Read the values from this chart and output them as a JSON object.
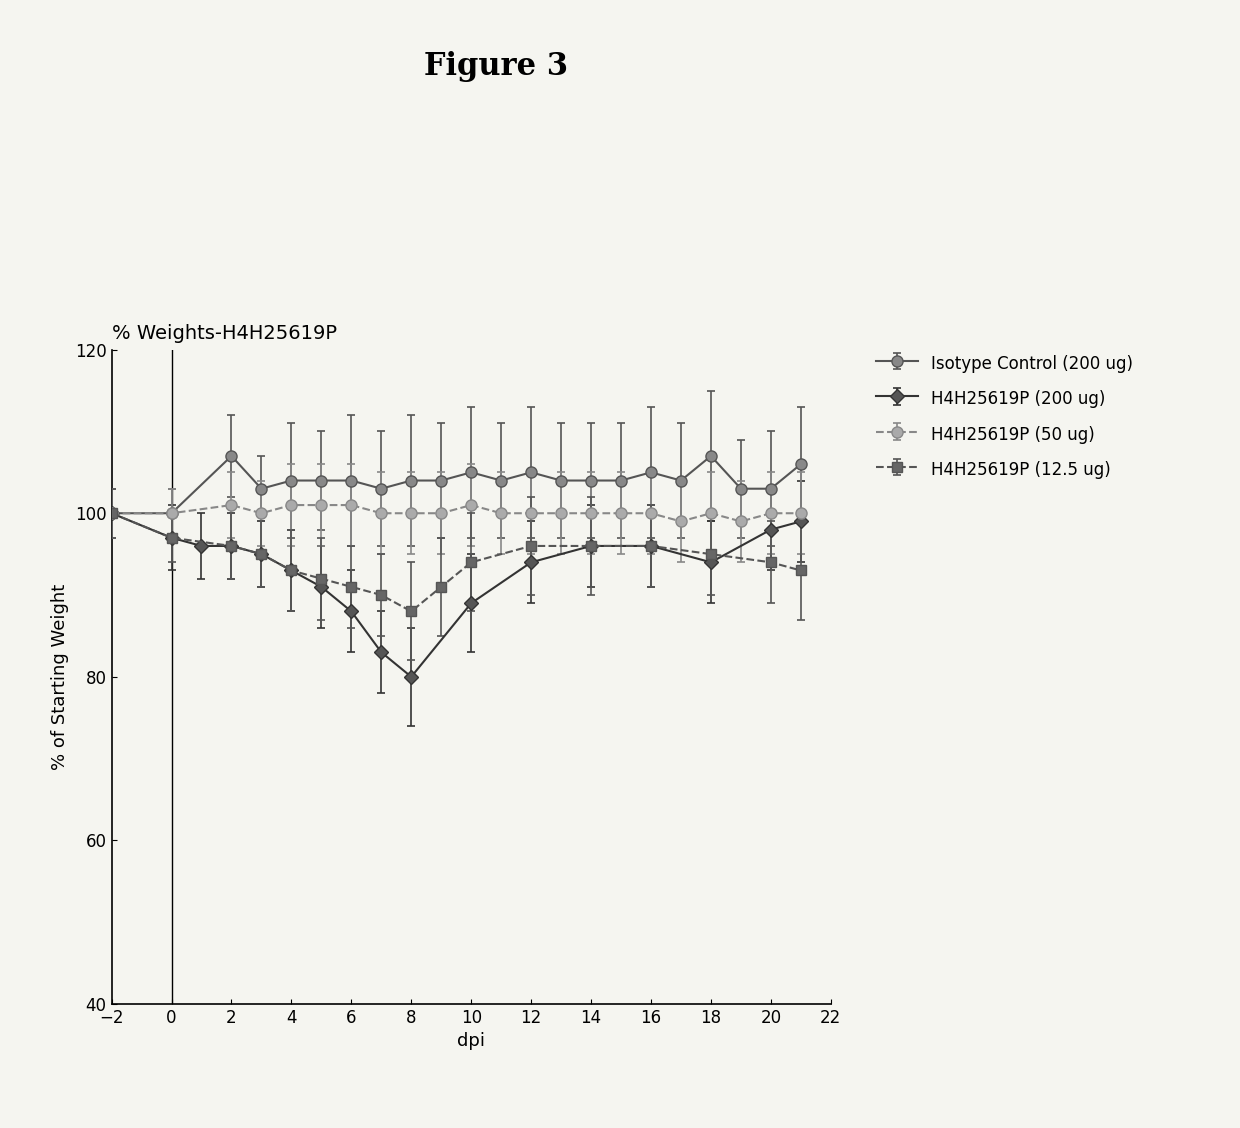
{
  "title": "Figure 3",
  "subtitle": "% Weights-H4H25619P",
  "xlabel": "dpi",
  "ylabel": "% of Starting Weight",
  "xlim": [
    -2,
    22
  ],
  "ylim": [
    40,
    120
  ],
  "xticks": [
    -2,
    0,
    2,
    4,
    6,
    8,
    10,
    12,
    14,
    16,
    18,
    20,
    22
  ],
  "yticks": [
    40,
    60,
    80,
    100,
    120
  ],
  "series": [
    {
      "label": "Isotype Control (200 ug)",
      "marker": "o",
      "color": "#555555",
      "mfc": "#888888",
      "markersize": 8,
      "linewidth": 1.5,
      "linestyle": "-",
      "x": [
        -2,
        0,
        2,
        3,
        4,
        5,
        6,
        7,
        8,
        9,
        10,
        11,
        12,
        13,
        14,
        15,
        16,
        17,
        18,
        19,
        20,
        21
      ],
      "y": [
        100,
        100,
        107,
        103,
        104,
        104,
        104,
        103,
        104,
        104,
        105,
        104,
        105,
        104,
        104,
        104,
        105,
        104,
        107,
        103,
        103,
        106
      ],
      "yerr": [
        3,
        3,
        5,
        4,
        7,
        6,
        8,
        7,
        8,
        7,
        8,
        7,
        8,
        7,
        7,
        7,
        8,
        7,
        8,
        6,
        7,
        7
      ]
    },
    {
      "label": "H4H25619P (200 ug)",
      "marker": "D",
      "color": "#333333",
      "mfc": "#555555",
      "markersize": 7,
      "linewidth": 1.5,
      "linestyle": "-",
      "x": [
        -2,
        0,
        1,
        2,
        3,
        4,
        5,
        6,
        7,
        8,
        10,
        12,
        14,
        16,
        18,
        20,
        21
      ],
      "y": [
        100,
        97,
        96,
        96,
        95,
        93,
        91,
        88,
        83,
        80,
        89,
        94,
        96,
        96,
        94,
        98,
        99
      ],
      "yerr": [
        3,
        4,
        4,
        4,
        4,
        5,
        5,
        5,
        5,
        6,
        6,
        5,
        5,
        5,
        5,
        5,
        5
      ]
    },
    {
      "label": "H4H25619P (50 ug)",
      "marker": "o",
      "color": "#888888",
      "mfc": "#aaaaaa",
      "markersize": 8,
      "linewidth": 1.5,
      "linestyle": "--",
      "x": [
        -2,
        0,
        2,
        3,
        4,
        5,
        6,
        7,
        8,
        9,
        10,
        11,
        12,
        13,
        14,
        15,
        16,
        17,
        18,
        19,
        20,
        21
      ],
      "y": [
        100,
        100,
        101,
        100,
        101,
        101,
        101,
        100,
        100,
        100,
        101,
        100,
        100,
        100,
        100,
        100,
        100,
        99,
        100,
        99,
        100,
        100
      ],
      "yerr": [
        3,
        3,
        4,
        4,
        5,
        5,
        5,
        5,
        5,
        5,
        5,
        5,
        5,
        5,
        5,
        5,
        5,
        5,
        5,
        5,
        5,
        5
      ]
    },
    {
      "label": "H4H25619P (12.5 ug)",
      "marker": "s",
      "color": "#555555",
      "mfc": "#666666",
      "markersize": 7,
      "linewidth": 1.5,
      "linestyle": "--",
      "x": [
        -2,
        0,
        2,
        3,
        4,
        5,
        6,
        7,
        8,
        9,
        10,
        12,
        14,
        16,
        18,
        20,
        21
      ],
      "y": [
        100,
        97,
        96,
        95,
        93,
        92,
        91,
        90,
        88,
        91,
        94,
        96,
        96,
        96,
        95,
        94,
        93
      ],
      "yerr": [
        3,
        3,
        4,
        4,
        5,
        5,
        5,
        5,
        6,
        6,
        6,
        6,
        6,
        5,
        5,
        5,
        6
      ]
    }
  ],
  "background_color": "#f5f5f0",
  "title_fontsize": 22,
  "subtitle_fontsize": 14,
  "label_fontsize": 13,
  "tick_fontsize": 12,
  "legend_fontsize": 12
}
